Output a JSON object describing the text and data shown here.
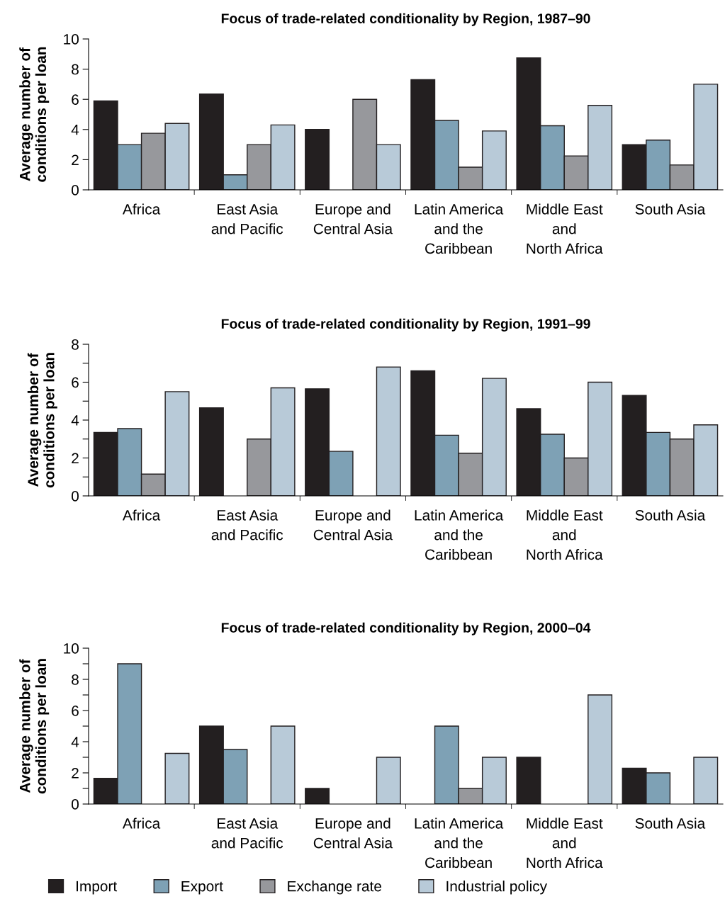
{
  "chart_data": [
    {
      "type": "bar",
      "title": "Focus of trade-related conditionality by Region, 1987–90",
      "ylabel": "Average number of\nconditions per loan",
      "categories": [
        "Africa",
        "East Asia\nand Pacific",
        "Europe and\nCentral Asia",
        "Latin America\nand the\nCaribbean",
        "Middle East\nand\nNorth Africa",
        "South Asia"
      ],
      "series": [
        {
          "color": "#231f20",
          "values": [
            5.9,
            6.35,
            4.0,
            7.3,
            8.75,
            3.0
          ]
        },
        {
          "color": "#7ea1b5",
          "values": [
            3.0,
            1.0,
            null,
            4.6,
            4.25,
            3.3
          ]
        },
        {
          "color": "#97989c",
          "values": [
            3.75,
            3.0,
            6.0,
            1.5,
            2.25,
            1.65
          ]
        },
        {
          "color": "#b8cad8",
          "values": [
            4.4,
            4.3,
            3.0,
            3.9,
            5.6,
            7.0
          ]
        }
      ],
      "ylim": [
        0,
        10
      ],
      "yticks": [
        0,
        2,
        4,
        6,
        8,
        10
      ],
      "grid": false,
      "legend": false
    },
    {
      "type": "bar",
      "title": "Focus of trade-related conditionality by Region, 1991–99",
      "ylabel": "Average number of\nconditions per loan",
      "categories": [
        "Africa",
        "East Asia\nand Pacific",
        "Europe and\nCentral Asia",
        "Latin America\nand the\nCaribbean",
        "Middle East\nand\nNorth Africa",
        "South Asia"
      ],
      "series": [
        {
          "color": "#231f20",
          "values": [
            3.35,
            4.65,
            5.65,
            6.6,
            4.6,
            5.3
          ]
        },
        {
          "color": "#7ea1b5",
          "values": [
            3.55,
            null,
            2.35,
            3.2,
            3.25,
            3.35
          ]
        },
        {
          "color": "#97989c",
          "values": [
            1.15,
            3.0,
            null,
            2.25,
            2.0,
            3.0
          ]
        },
        {
          "color": "#b8cad8",
          "values": [
            5.5,
            5.7,
            6.8,
            6.2,
            6.0,
            3.75
          ]
        }
      ],
      "ylim": [
        0,
        8
      ],
      "yticks": [
        0,
        {
          "value": 1,
          "label": null
        },
        2,
        {
          "value": 3,
          "label": null
        },
        4,
        {
          "value": 5,
          "label": null
        },
        6,
        {
          "value": 7,
          "label": null
        },
        8
      ],
      "grid": false,
      "legend": false
    },
    {
      "type": "bar",
      "title": "Focus of trade-related conditionality by Region, 2000–04",
      "ylabel": "Average number of\nconditions per loan",
      "categories": [
        "Africa",
        "East Asia\nand Pacific",
        "Europe and\nCentral Asia",
        "Latin America\nand the\nCaribbean",
        "Middle East\nand\nNorth Africa",
        "South Asia"
      ],
      "series": [
        {
          "name": "Import",
          "color": "#231f20",
          "values": [
            1.65,
            5.0,
            1.0,
            null,
            3.0,
            2.3
          ]
        },
        {
          "name": "Export",
          "color": "#7ea1b5",
          "values": [
            9.0,
            3.5,
            null,
            5.0,
            null,
            2.0
          ]
        },
        {
          "name": "Exchange rate",
          "color": "#97989c",
          "values": [
            null,
            null,
            null,
            1.0,
            null,
            null
          ]
        },
        {
          "name": "Industrial policy",
          "color": "#b8cad8",
          "values": [
            3.25,
            5.0,
            3.0,
            3.0,
            7.0,
            3.0
          ]
        }
      ],
      "ylim": [
        0,
        10
      ],
      "yticks": [
        0,
        {
          "value": 1,
          "label": null
        },
        2,
        {
          "value": 3,
          "label": null
        },
        4,
        {
          "value": 5,
          "label": null
        },
        6,
        {
          "value": 7,
          "label": null
        },
        8,
        {
          "value": 9,
          "label": null
        },
        10
      ],
      "grid": false,
      "legend": "bottom"
    }
  ]
}
